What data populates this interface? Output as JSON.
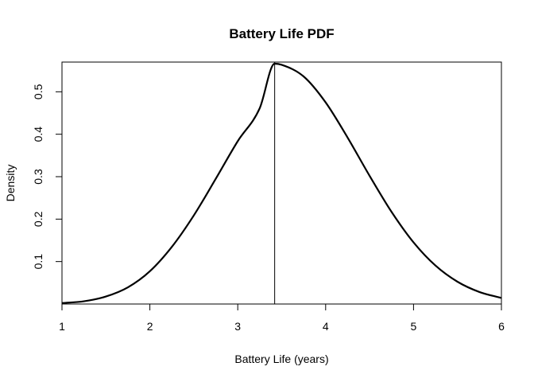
{
  "chart_data": {
    "type": "line",
    "title": "Battery Life PDF",
    "xlabel": "Battery Life (years)",
    "ylabel": "Density",
    "xlim": [
      1,
      6
    ],
    "ylim": [
      0,
      0.57
    ],
    "x_ticks": [
      1,
      2,
      3,
      4,
      5,
      6
    ],
    "x_tick_labels": [
      "1",
      "2",
      "3",
      "4",
      "5",
      "6"
    ],
    "y_ticks": [
      0.1,
      0.2,
      0.3,
      0.4,
      0.5
    ],
    "y_tick_labels": [
      "0.1",
      "0.2",
      "0.3",
      "0.4",
      "0.5"
    ],
    "grid": false,
    "legend": "none",
    "series": [
      {
        "x": [
          1.0,
          1.25,
          1.5,
          1.75,
          2.0,
          2.25,
          2.5,
          2.75,
          3.0,
          3.25,
          3.42,
          3.5,
          3.75,
          4.0,
          4.25,
          4.5,
          4.75,
          5.0,
          5.25,
          5.5,
          5.75,
          6.0
        ],
        "y": [
          0.0023,
          0.0065,
          0.0177,
          0.0393,
          0.0772,
          0.1346,
          0.2087,
          0.2952,
          0.3837,
          0.4614,
          0.5662,
          0.5635,
          0.536,
          0.475,
          0.392,
          0.302,
          0.217,
          0.1452,
          0.0905,
          0.0525,
          0.0283,
          0.0142
        ]
      }
    ],
    "vline": {
      "x": 3.42
    },
    "colors": {
      "line": "#000000",
      "background": "#ffffff"
    }
  }
}
